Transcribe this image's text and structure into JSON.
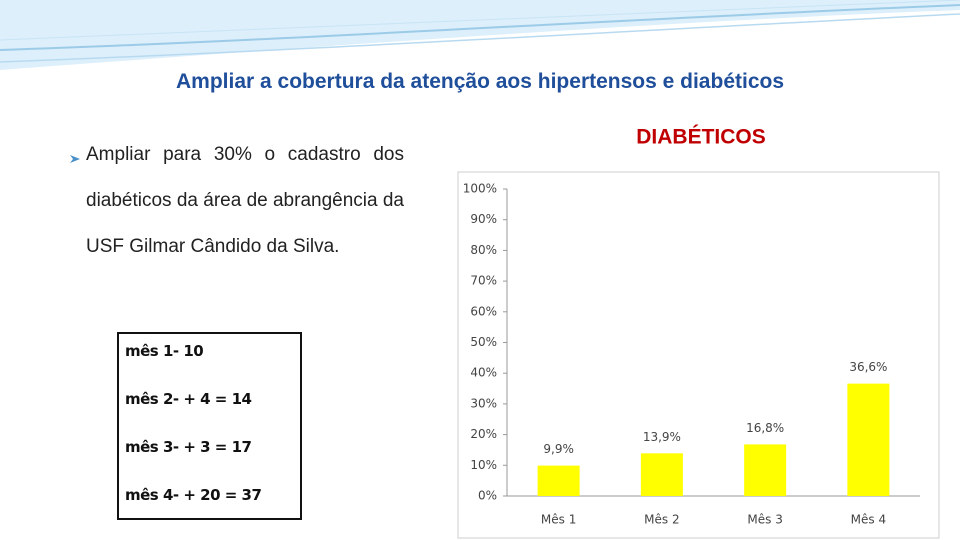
{
  "slide": {
    "title": "Ampliar a cobertura da atenção aos hipertensos e diabéticos",
    "bullet": "Ampliar para 30% o cadastro dos diabéticos da área de abrangência da USF Gilmar Cândido da Silva.",
    "box_lines": [
      "mês 1-  10",
      "mês 2-  + 4  = 14",
      "mês 3-  + 3  = 17",
      "mês 4- + 20 = 37"
    ]
  },
  "chart_data": {
    "type": "bar",
    "title": "DIABÉTICOS",
    "categories": [
      "Mês 1",
      "Mês 2",
      "Mês 3",
      "Mês 4"
    ],
    "values": [
      9.9,
      13.9,
      16.8,
      36.6
    ],
    "value_labels": [
      "9,9%",
      "13,9%",
      "16,8%",
      "36,6%"
    ],
    "color": "#ffff00",
    "ylim": [
      0,
      100
    ],
    "yticks": [
      {
        "value": 0,
        "label": "0%"
      },
      {
        "value": 10,
        "label": "10%"
      },
      {
        "value": 20,
        "label": "20%"
      },
      {
        "value": 30,
        "label": "30%"
      },
      {
        "value": 40,
        "label": "40%"
      },
      {
        "value": 50,
        "label": "50%"
      },
      {
        "value": 60,
        "label": "60%"
      },
      {
        "value": 70,
        "label": "70%"
      },
      {
        "value": 80,
        "label": "80%"
      },
      {
        "value": 90,
        "label": "90%"
      },
      {
        "value": 100,
        "label": "100%"
      }
    ],
    "grid": false
  }
}
